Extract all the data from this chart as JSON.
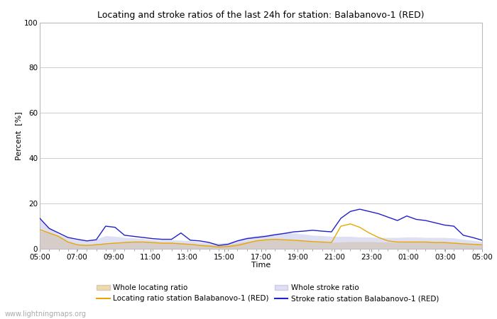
{
  "title": "Locating and stroke ratios of the last 24h for station: Balabanovo-1 (RED)",
  "xlabel": "Time",
  "ylabel": "Percent  [%]",
  "ylim": [
    0,
    100
  ],
  "yticks": [
    0,
    20,
    40,
    60,
    80,
    100
  ],
  "background_color": "#ffffff",
  "watermark": "www.lightningmaps.org",
  "x_labels": [
    "05:00",
    "07:00",
    "09:00",
    "11:00",
    "13:00",
    "15:00",
    "17:00",
    "19:00",
    "21:00",
    "23:00",
    "01:00",
    "03:00",
    "05:00"
  ],
  "locating_ratio_line_color": "#e6a800",
  "stroke_ratio_line_color": "#2020cc",
  "locating_fill_color": "#e8cc88",
  "stroke_fill_color": "#c0c0e8",
  "locating_fill_alpha": 0.7,
  "stroke_fill_alpha": 0.5,
  "whole_locating": [
    8.0,
    7.2,
    5.5,
    3.2,
    2.0,
    1.8,
    2.2,
    2.5,
    2.8,
    3.0,
    3.2,
    3.2,
    3.0,
    2.8,
    2.8,
    2.5,
    2.2,
    2.0,
    1.8,
    1.5,
    1.8,
    2.5,
    3.2,
    3.8,
    4.0,
    4.2,
    4.0,
    3.8,
    3.5,
    3.2,
    3.0,
    2.8,
    3.0,
    3.2,
    3.2,
    3.2,
    3.0,
    3.0,
    2.8,
    3.0,
    3.0,
    3.0,
    3.0,
    3.0,
    2.8,
    2.5,
    2.2,
    2.0
  ],
  "whole_stroke": [
    13.0,
    9.5,
    6.5,
    4.8,
    4.0,
    3.8,
    4.2,
    5.8,
    5.5,
    5.0,
    4.8,
    4.5,
    4.0,
    4.0,
    4.0,
    3.8,
    3.5,
    3.0,
    2.8,
    2.5,
    2.8,
    4.0,
    5.2,
    5.8,
    6.2,
    6.8,
    7.2,
    7.0,
    6.5,
    6.0,
    5.8,
    5.5,
    5.5,
    5.5,
    5.2,
    5.2,
    5.0,
    5.0,
    5.0,
    5.2,
    5.2,
    5.0,
    5.0,
    5.0,
    4.8,
    4.2,
    3.8,
    3.2
  ],
  "locating_ratio": [
    8.5,
    7.0,
    5.5,
    3.0,
    1.8,
    1.5,
    1.8,
    2.2,
    2.5,
    2.8,
    3.0,
    3.0,
    2.8,
    2.5,
    2.5,
    2.2,
    2.0,
    1.5,
    1.2,
    0.8,
    1.0,
    1.5,
    2.5,
    3.5,
    4.0,
    4.2,
    4.0,
    3.8,
    3.5,
    3.2,
    3.0,
    2.8,
    10.0,
    11.0,
    9.5,
    7.0,
    5.0,
    3.5,
    3.0,
    3.0,
    3.0,
    3.0,
    2.8,
    2.8,
    2.5,
    2.2,
    2.0,
    1.8
  ],
  "stroke_ratio": [
    13.5,
    9.0,
    7.0,
    5.0,
    4.2,
    3.5,
    4.0,
    10.0,
    9.5,
    6.0,
    5.5,
    5.0,
    4.5,
    4.2,
    4.2,
    7.0,
    3.8,
    3.5,
    2.8,
    1.5,
    2.0,
    3.5,
    4.5,
    5.0,
    5.5,
    6.2,
    6.8,
    7.5,
    7.8,
    8.2,
    7.8,
    7.5,
    13.5,
    16.5,
    17.5,
    16.5,
    15.5,
    14.0,
    12.5,
    14.5,
    13.0,
    12.5,
    11.5,
    10.5,
    10.0,
    6.0,
    5.0,
    3.8
  ]
}
